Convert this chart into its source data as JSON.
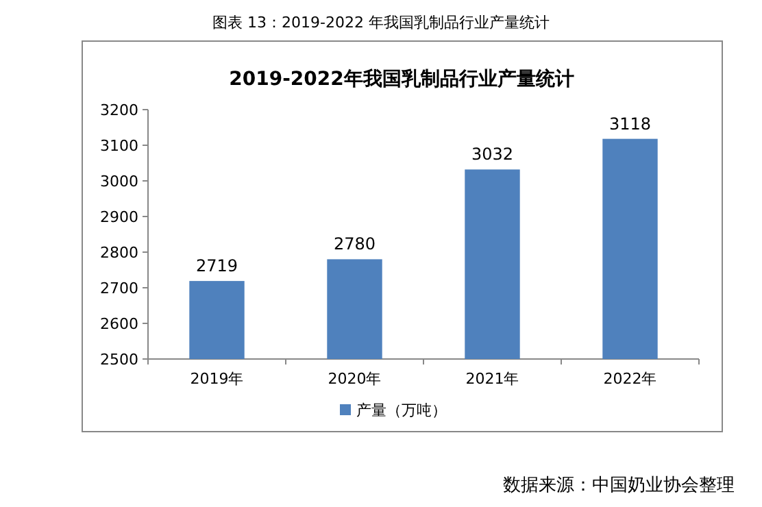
{
  "chart_data": {
    "type": "bar",
    "title": "2019-2022年我国乳制品行业产量统计",
    "categories": [
      "2019年",
      "2020年",
      "2021年",
      "2022年"
    ],
    "series": [
      {
        "name": "产量（万吨）",
        "color": "#4f81bd",
        "values": [
          2719,
          2780,
          3032,
          3118
        ]
      }
    ],
    "ylim": [
      2500,
      3200
    ],
    "yticks": [
      2500,
      2600,
      2700,
      2800,
      2900,
      3000,
      3100,
      3200
    ],
    "data_labels": true,
    "legend": "bottom",
    "grid": false,
    "annotations": [
      "图表 13：2019-2022 年我国乳制品行业产量统计",
      "数据来源：中国奶业协会整理"
    ]
  }
}
